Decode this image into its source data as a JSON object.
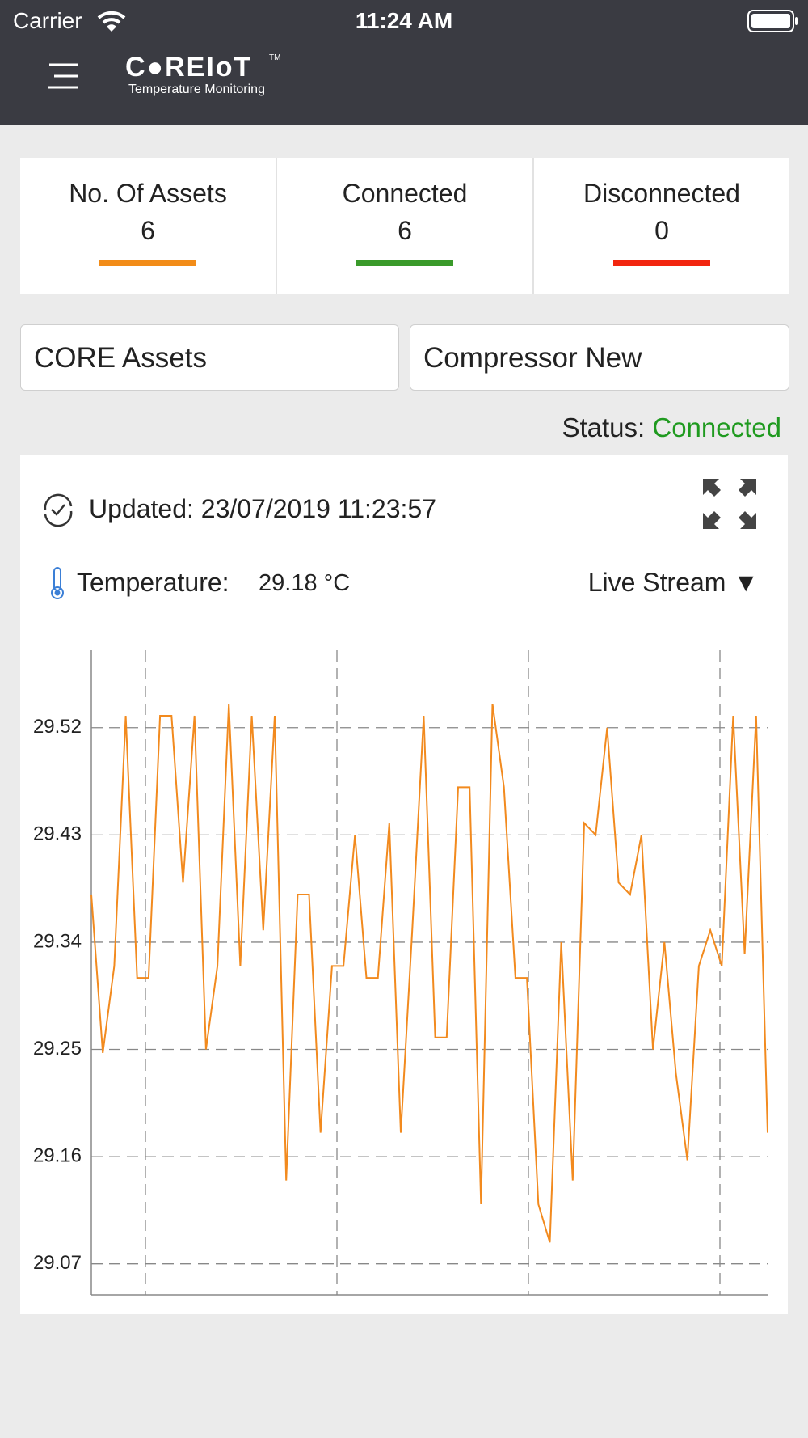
{
  "status_bar": {
    "carrier": "Carrier",
    "time": "11:24 AM"
  },
  "header": {
    "logo": "C●REIoT",
    "trademark": "TM",
    "subtitle": "Temperature Monitoring"
  },
  "stats": [
    {
      "label": "No. Of Assets",
      "value": 6,
      "color": "#f28c18"
    },
    {
      "label": "Connected",
      "value": 6,
      "color": "#3a9a2a"
    },
    {
      "label": "Disconnected",
      "value": 0,
      "color": "#f2260f"
    }
  ],
  "selectors": [
    "CORE Assets",
    "Compressor New"
  ],
  "status": {
    "label": "Status:",
    "value": "Connected"
  },
  "panel": {
    "updated": "Updated: 23/07/2019 11:23:57",
    "temperature_label": "Temperature:",
    "temperature_value": "29.18 °C",
    "stream": "Live Stream ▼"
  },
  "chart_data": {
    "type": "line",
    "color": "#f28a1e",
    "grid": true,
    "values": [
      29.38,
      29.247,
      29.32,
      29.53,
      29.31,
      29.31,
      29.53,
      29.53,
      29.39,
      29.53,
      29.25,
      29.32,
      29.54,
      29.32,
      29.53,
      29.35,
      29.53,
      29.14,
      29.38,
      29.38,
      29.18,
      29.32,
      29.32,
      29.43,
      29.31,
      29.31,
      29.44,
      29.18,
      29.35,
      29.53,
      29.26,
      29.26,
      29.47,
      29.47,
      29.12,
      29.54,
      29.47,
      29.31,
      29.31,
      29.12,
      29.088,
      29.34,
      29.14,
      29.44,
      29.43,
      29.52,
      29.39,
      29.38,
      29.43,
      29.25,
      29.34,
      29.23,
      29.157,
      29.32,
      29.35,
      29.32,
      29.53,
      29.33,
      29.53,
      29.18
    ],
    "ylim": [
      29.044,
      29.585
    ],
    "yticks": [
      29.07,
      29.16,
      29.25,
      29.34,
      29.43,
      29.52
    ]
  }
}
